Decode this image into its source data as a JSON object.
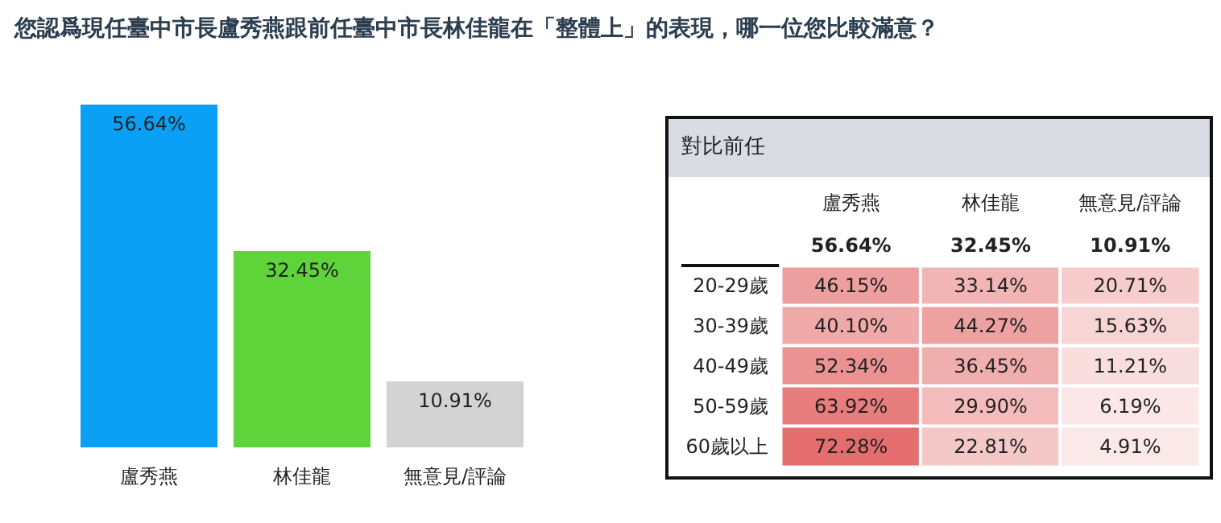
{
  "chart_data": [
    {
      "type": "bar",
      "title": "您認爲現任臺中市長盧秀燕跟前任臺中市長林佳龍在「整體上」的表現，哪一位您比較滿意？",
      "categories": [
        "盧秀燕",
        "林佳龍",
        "無意見/評論"
      ],
      "values": [
        56.64,
        32.45,
        10.91
      ],
      "colors": [
        "#0aa0f5",
        "#5ed43a",
        "#d3d3d3"
      ],
      "value_labels": [
        "56.64%",
        "32.45%",
        "10.91%"
      ]
    },
    {
      "type": "heatmap",
      "title": "對比前任",
      "categories": [
        "盧秀燕",
        "林佳龍",
        "無意見/評論"
      ],
      "y_categories": [
        null,
        "20-29歲",
        "30-39歲",
        "40-49歲",
        "50-59歲",
        "60歲以上"
      ],
      "cells": [
        [
          56.64,
          32.45,
          10.91
        ],
        [
          46.15,
          33.14,
          20.71
        ],
        [
          40.1,
          44.27,
          15.63
        ],
        [
          52.34,
          36.45,
          11.21
        ],
        [
          63.92,
          29.9,
          6.19
        ],
        [
          72.28,
          22.81,
          4.91
        ]
      ],
      "cell_labels": [
        [
          "56.64%",
          "32.45%",
          "10.91%"
        ],
        [
          "46.15%",
          "33.14%",
          "20.71%"
        ],
        [
          "40.10%",
          "44.27%",
          "15.63%"
        ],
        [
          "52.34%",
          "36.45%",
          "11.21%"
        ],
        [
          "63.92%",
          "29.90%",
          "6.19%"
        ],
        [
          "72.28%",
          "22.81%",
          "4.91%"
        ]
      ]
    }
  ]
}
